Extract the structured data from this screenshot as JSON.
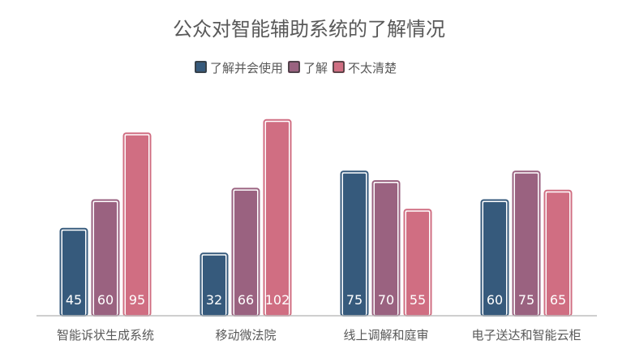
{
  "chart_data": {
    "type": "bar",
    "title": "公众对智能辅助系统的了解情况",
    "categories": [
      "智能诉状生成系统",
      "移动微法院",
      "线上调解和庭审",
      "电子送达和智能云柜"
    ],
    "series": [
      {
        "name": "了解并会使用",
        "values": [
          45,
          32,
          75,
          60
        ],
        "color": "#365a7c"
      },
      {
        "name": "了解",
        "values": [
          60,
          66,
          70,
          75
        ],
        "color": "#9a6280"
      },
      {
        "name": "不太清楚",
        "values": [
          95,
          102,
          55,
          65
        ],
        "color": "#d06e82"
      }
    ],
    "ylim": [
      0,
      110
    ],
    "grid": false,
    "legend_position": "top-center",
    "xlabel": "",
    "ylabel": ""
  }
}
